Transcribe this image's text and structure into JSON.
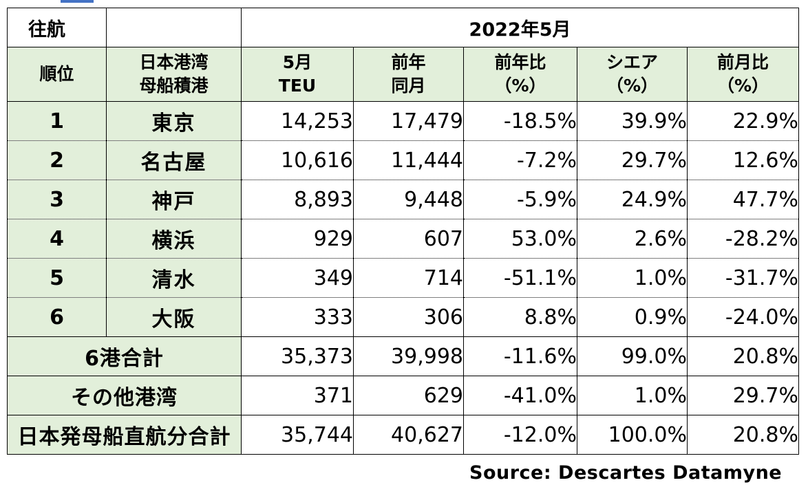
{
  "table": {
    "title": "往航",
    "date": "2022年5月",
    "headers": {
      "rank": [
        "順位"
      ],
      "port": [
        "日本港湾",
        "母船積港"
      ],
      "teu": [
        "5月",
        "TEU"
      ],
      "prev": [
        "前年",
        "同月"
      ],
      "yoy": [
        "前年比",
        "（%）"
      ],
      "share": [
        "シエア",
        "（%）"
      ],
      "mom": [
        "前月比",
        "（%）"
      ]
    },
    "rows": [
      {
        "rank": "1",
        "port": "東京",
        "teu": "14,253",
        "prev": "17,479",
        "yoy": "-18.5%",
        "share": "39.9%",
        "mom": "22.9%"
      },
      {
        "rank": "2",
        "port": "名古屋",
        "teu": "10,616",
        "prev": "11,444",
        "yoy": "-7.2%",
        "share": "29.7%",
        "mom": "12.6%"
      },
      {
        "rank": "3",
        "port": "神戸",
        "teu": "8,893",
        "prev": "9,448",
        "yoy": "-5.9%",
        "share": "24.9%",
        "mom": "47.7%"
      },
      {
        "rank": "4",
        "port": "横浜",
        "teu": "929",
        "prev": "607",
        "yoy": "53.0%",
        "share": "2.6%",
        "mom": "-28.2%"
      },
      {
        "rank": "5",
        "port": "清水",
        "teu": "349",
        "prev": "714",
        "yoy": "-51.1%",
        "share": "1.0%",
        "mom": "-31.7%"
      },
      {
        "rank": "6",
        "port": "大阪",
        "teu": "333",
        "prev": "306",
        "yoy": "8.8%",
        "share": "0.9%",
        "mom": "-24.0%"
      }
    ],
    "summary": [
      {
        "label": "6港合計",
        "teu": "35,373",
        "prev": "39,998",
        "yoy": "-11.6%",
        "share": "99.0%",
        "mom": "20.8%"
      },
      {
        "label": "その他港湾",
        "teu": "371",
        "prev": "629",
        "yoy": "-41.0%",
        "share": "1.0%",
        "mom": "29.7%"
      },
      {
        "label": "日本発母船直航分合計",
        "teu": "35,744",
        "prev": "40,627",
        "yoy": "-12.0%",
        "share": "100.0%",
        "mom": "20.8%"
      }
    ]
  },
  "source": "Source:  Descartes Datamyne"
}
